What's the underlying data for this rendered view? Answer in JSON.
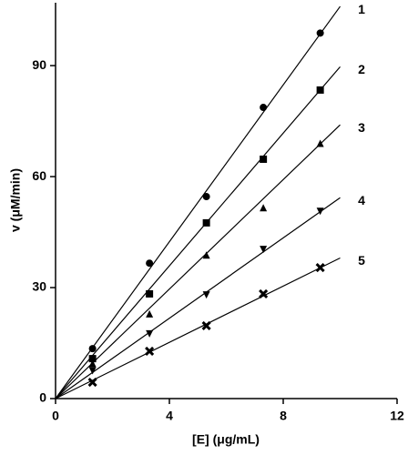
{
  "chart_data": {
    "type": "scatter",
    "x_label": "[E] (μg/mL)",
    "y_label": "v (μM/min)",
    "xlim": [
      0,
      12
    ],
    "xticks": [
      0,
      4,
      8,
      12
    ],
    "ylim": [
      0,
      107
    ],
    "yticks": [
      0,
      30,
      60,
      90
    ],
    "color": "#000000",
    "series": [
      {
        "name": "1",
        "marker": "circle",
        "x": [
          1.3,
          3.3,
          5.3,
          7.3,
          9.3
        ],
        "values": [
          13.5,
          36.6,
          54.6,
          78.7,
          98.8
        ],
        "fit_x": [
          0,
          10
        ],
        "fit_y": [
          0,
          106
        ]
      },
      {
        "name": "2",
        "marker": "square",
        "x": [
          1.3,
          3.3,
          5.3,
          7.3,
          9.3
        ],
        "values": [
          10.8,
          28.3,
          47.5,
          64.7,
          83.4
        ],
        "fit_x": [
          0,
          10
        ],
        "fit_y": [
          0,
          89.7
        ]
      },
      {
        "name": "3",
        "marker": "triangle",
        "x": [
          1.3,
          3.3,
          5.3,
          7.3,
          9.3
        ],
        "values": [
          9.5,
          22.9,
          38.8,
          51.6,
          69
        ],
        "fit_x": [
          0,
          10
        ],
        "fit_y": [
          0,
          74
        ]
      },
      {
        "name": "4",
        "marker": "triangle-down",
        "x": [
          1.3,
          3.3,
          5.3,
          7.3,
          9.3
        ],
        "values": [
          7.5,
          17.5,
          28,
          40.3,
          50.6
        ],
        "fit_x": [
          0,
          10
        ],
        "fit_y": [
          0,
          54.3
        ]
      },
      {
        "name": "5",
        "marker": "cross",
        "x": [
          1.3,
          3.3,
          5.3,
          7.3,
          9.3
        ],
        "values": [
          4.4,
          12.8,
          19.7,
          28.3,
          35.4
        ],
        "fit_x": [
          0,
          10
        ],
        "fit_y": [
          0,
          38
        ]
      }
    ]
  }
}
